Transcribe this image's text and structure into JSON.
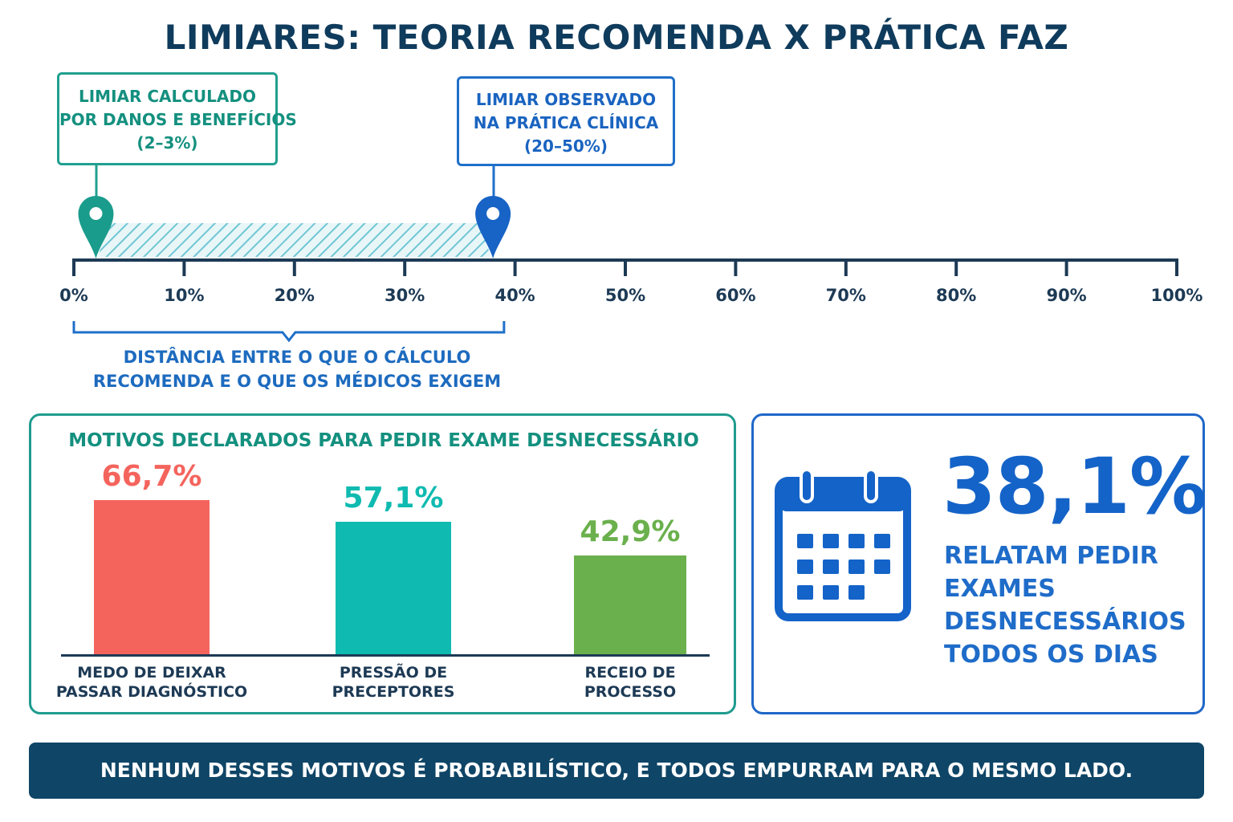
{
  "title": "LIMIARES: TEORIA RECOMENDA X PRÁTICA FAZ",
  "colors": {
    "navy": "#0f3b5c",
    "teal": "#20a08f",
    "blue": "#1f6fc9",
    "red": "#f4645d",
    "cyan": "#0fbab0",
    "green": "#6ab04c",
    "footer": "#0f4566"
  },
  "threshold_scale": {
    "ticks": [
      "0%",
      "10%",
      "20%",
      "30%",
      "40%",
      "50%",
      "60%",
      "70%",
      "80%",
      "90%",
      "100%"
    ],
    "calculated": {
      "lines": [
        "LIMIAR CALCULADO",
        "POR DANOS E BENEFÍCIOS",
        "(2–3%)"
      ],
      "marker_value": 2,
      "icon": "location-pin-icon"
    },
    "observed": {
      "lines": [
        "LIMIAR OBSERVADO",
        "NA PRÁTICA CLÍNICA",
        "(20–50%)"
      ],
      "marker_value": 38,
      "icon": "location-pin-icon"
    },
    "bracket": {
      "from": 0,
      "to": 39,
      "lines": [
        "DISTÂNCIA ENTRE O QUE O CÁLCULO",
        "RECOMENDA E O QUE OS MÉDICOS EXIGEM"
      ]
    }
  },
  "chart_data": {
    "type": "bar",
    "title": "MOTIVOS DECLARADOS PARA PEDIR EXAME DESNECESSÁRIO",
    "categories": [
      "MEDO DE DEIXAR PASSAR DIAGNÓSTICO",
      "PRESSÃO DE PRECEPTORES",
      "RECEIO DE PROCESSO"
    ],
    "category_lines": [
      [
        "MEDO DE DEIXAR",
        "PASSAR DIAGNÓSTICO"
      ],
      [
        "PRESSÃO DE",
        "PRECEPTORES"
      ],
      [
        "RECEIO DE",
        "PROCESSO"
      ]
    ],
    "values": [
      66.7,
      57.1,
      42.9
    ],
    "value_labels": [
      "66,7%",
      "57,1%",
      "42,9%"
    ],
    "colors": [
      "#f4645d",
      "#0fbab0",
      "#6ab04c"
    ],
    "ylim": [
      0,
      100
    ],
    "grid": false
  },
  "stat": {
    "value": "38,1%",
    "lines": [
      "RELATAM PEDIR",
      "EXAMES",
      "DESNECESSÁRIOS",
      "TODOS OS DIAS"
    ],
    "icon": "calendar-icon"
  },
  "footer": "NENHUM DESSES MOTIVOS É PROBABILÍSTICO, E TODOS EMPURRAM PARA O MESMO LADO."
}
